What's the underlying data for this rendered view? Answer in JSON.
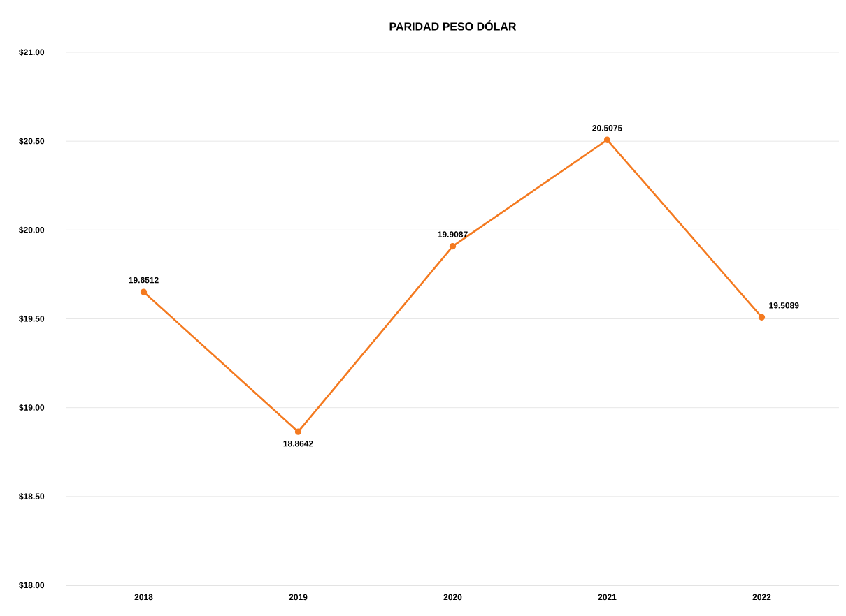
{
  "chart_data": {
    "type": "line",
    "title": "PARIDAD PESO DÓLAR",
    "categories": [
      "2018",
      "2019",
      "2020",
      "2021",
      "2022"
    ],
    "values": [
      19.6512,
      18.8642,
      19.9087,
      20.5075,
      19.5089
    ],
    "color": "#f47a20",
    "marker": "circle",
    "line_style": "solid",
    "data_labels": true,
    "grid": "y",
    "ylim": [
      18,
      21
    ],
    "yticks": [
      {
        "value": 18,
        "label": "$18.00"
      },
      {
        "value": 18.5,
        "label": "$18.50"
      },
      {
        "value": 19,
        "label": "$19.00"
      },
      {
        "value": 19.5,
        "label": "$19.50"
      },
      {
        "value": 20,
        "label": "$20.00"
      },
      {
        "value": 20.5,
        "label": "$20.50"
      },
      {
        "value": 21,
        "label": "$21.00"
      }
    ]
  }
}
